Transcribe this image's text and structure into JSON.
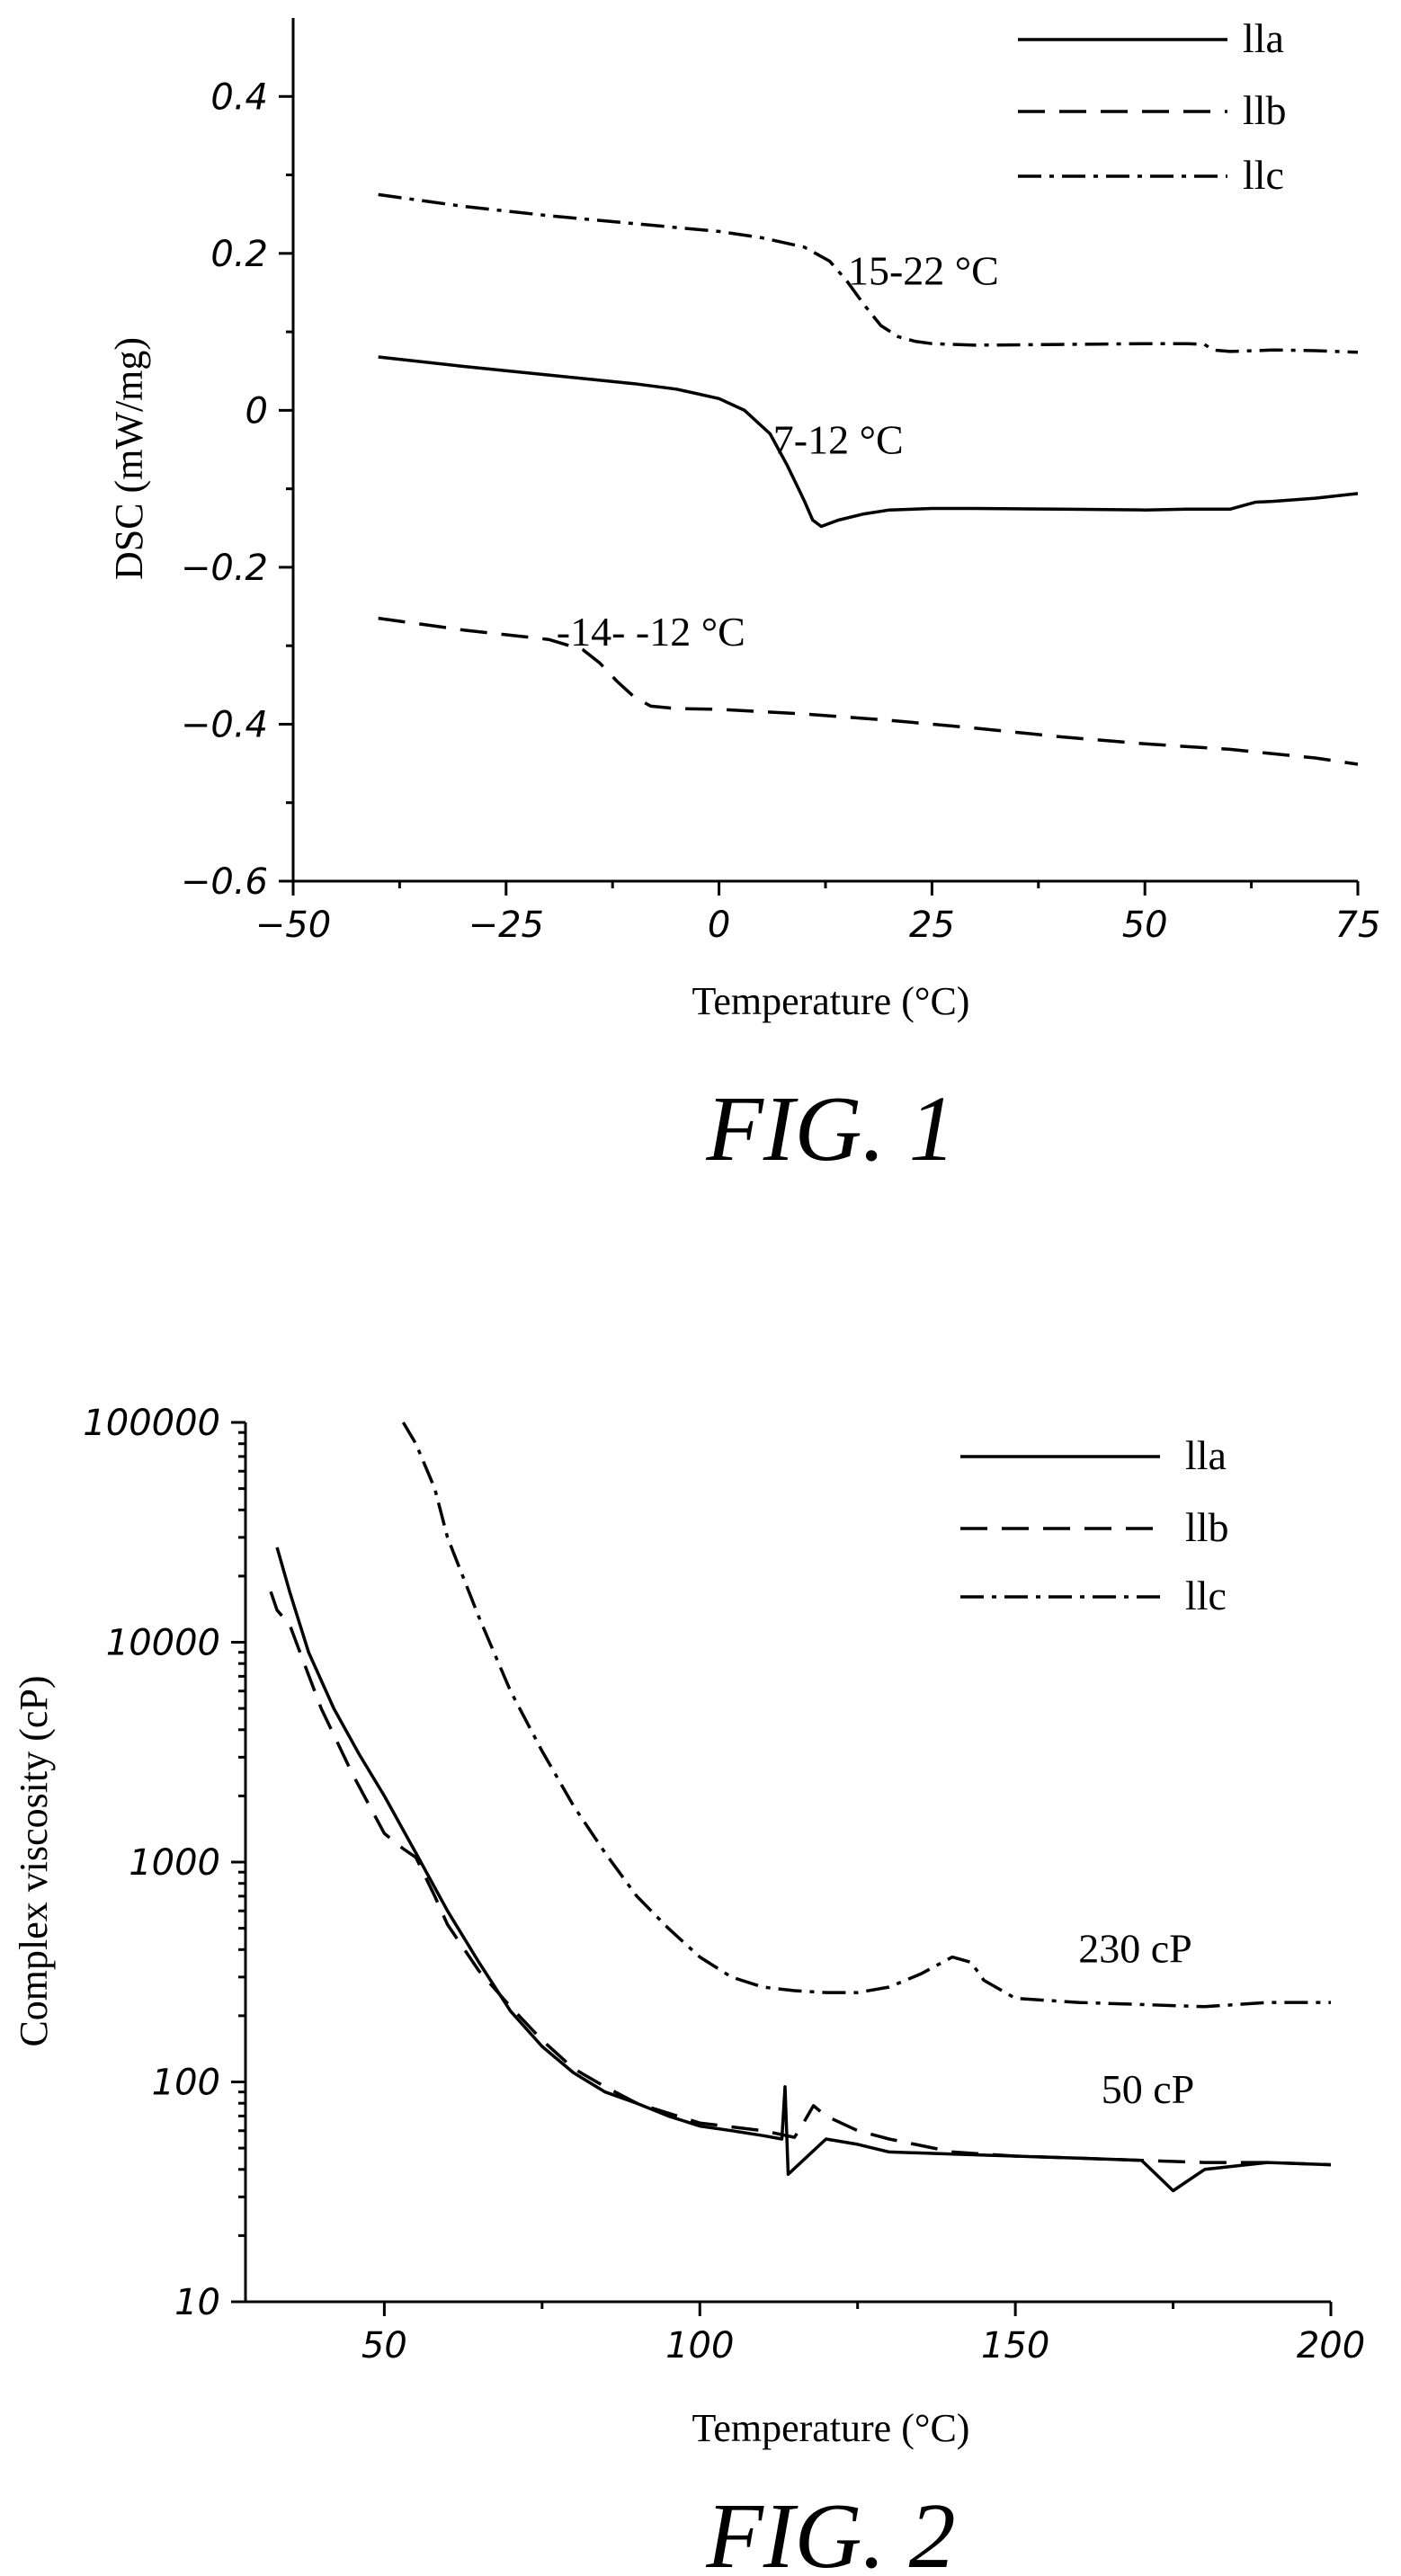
{
  "chart_data": [
    {
      "type": "line",
      "caption": "FIG. 1",
      "xlabel": "Temperature (°C)",
      "ylabel": "DSC (mW/mg)",
      "xlim": [
        -50,
        75
      ],
      "ylim": [
        -0.6,
        0.5
      ],
      "x_ticks": [
        -50,
        -25,
        0,
        25,
        50,
        75
      ],
      "x_tick_labels": [
        "−50",
        "−25",
        "0",
        "25",
        "50",
        "75"
      ],
      "y_ticks": [
        -0.6,
        -0.4,
        -0.2,
        0,
        0.2,
        0.4
      ],
      "y_tick_labels": [
        "−0.6",
        "−0.4",
        "−0.2",
        "0",
        "0.2",
        "0.4"
      ],
      "y_scale": "linear",
      "grid": false,
      "legend_position": "top-right",
      "series": [
        {
          "name": "lla",
          "style": "solid",
          "x": [
            -40,
            -30,
            -20,
            -10,
            -5,
            0,
            3,
            6,
            8,
            10,
            11,
            12,
            14,
            17,
            20,
            25,
            30,
            40,
            50,
            55,
            60,
            62,
            63,
            65,
            70,
            75
          ],
          "y": [
            0.068,
            0.056,
            0.045,
            0.034,
            0.027,
            0.015,
            0.0,
            -0.03,
            -0.07,
            -0.115,
            -0.14,
            -0.148,
            -0.14,
            -0.132,
            -0.127,
            -0.125,
            -0.125,
            -0.126,
            -0.127,
            -0.126,
            -0.126,
            -0.12,
            -0.117,
            -0.116,
            -0.112,
            -0.106
          ]
        },
        {
          "name": "llb",
          "style": "dashed",
          "x": [
            -40,
            -30,
            -20,
            -16,
            -14,
            -12,
            -10,
            -8,
            -5,
            0,
            10,
            20,
            30,
            40,
            50,
            60,
            70,
            75
          ],
          "y": [
            -0.265,
            -0.28,
            -0.292,
            -0.305,
            -0.322,
            -0.345,
            -0.365,
            -0.377,
            -0.38,
            -0.381,
            -0.387,
            -0.395,
            -0.405,
            -0.416,
            -0.425,
            -0.432,
            -0.443,
            -0.451
          ]
        },
        {
          "name": "llc",
          "style": "dash-dot",
          "x": [
            -40,
            -30,
            -20,
            -10,
            0,
            5,
            10,
            13,
            15,
            17,
            19,
            21,
            23,
            25,
            30,
            40,
            50,
            55,
            57,
            58,
            60,
            63,
            65,
            70,
            75
          ],
          "y": [
            0.275,
            0.26,
            0.248,
            0.238,
            0.228,
            0.22,
            0.208,
            0.19,
            0.165,
            0.135,
            0.108,
            0.094,
            0.088,
            0.085,
            0.083,
            0.084,
            0.085,
            0.085,
            0.084,
            0.077,
            0.075,
            0.076,
            0.077,
            0.076,
            0.074
          ]
        }
      ],
      "annotations": [
        {
          "text": "15-22 °C",
          "x": 24,
          "y": 0.16
        },
        {
          "text": "7-12 °C",
          "x": 14,
          "y": -0.055
        },
        {
          "text": "-14- -12 °C",
          "x": -8,
          "y": -0.3
        }
      ]
    },
    {
      "type": "line",
      "caption": "FIG. 2",
      "xlabel": "Temperature (°C)",
      "ylabel": "Complex viscosity (cP)",
      "xlim": [
        28,
        200
      ],
      "ylim": [
        10,
        100000
      ],
      "x_ticks": [
        50,
        100,
        150,
        200
      ],
      "x_tick_labels": [
        "50",
        "100",
        "150",
        "200"
      ],
      "y_ticks": [
        10,
        100,
        1000,
        10000,
        100000
      ],
      "y_tick_labels": [
        "10",
        "100",
        "1000",
        "10000",
        "100000"
      ],
      "y_scale": "log",
      "grid": false,
      "legend_position": "top-right",
      "series": [
        {
          "name": "lla",
          "style": "solid",
          "x": [
            33,
            35,
            38,
            42,
            46,
            50,
            55,
            60,
            65,
            70,
            75,
            80,
            85,
            90,
            95,
            100,
            105,
            110,
            113,
            113.5,
            114,
            120,
            125,
            130,
            140,
            150,
            160,
            170,
            175,
            180,
            190,
            200
          ],
          "y": [
            27000,
            17000,
            9000,
            5000,
            3100,
            2000,
            1100,
            600,
            350,
            210,
            145,
            110,
            90,
            80,
            70,
            63,
            60,
            57,
            55,
            95,
            38,
            55,
            52,
            48,
            47,
            46,
            45,
            44,
            32,
            40,
            43,
            42
          ]
        },
        {
          "name": "llb",
          "style": "dashed",
          "x": [
            32,
            33,
            35,
            40,
            45,
            50,
            53,
            55,
            58,
            60,
            65,
            70,
            75,
            80,
            85,
            90,
            100,
            110,
            115,
            116,
            118,
            120,
            125,
            130,
            140,
            150,
            160,
            170,
            180,
            190,
            200
          ],
          "y": [
            17000,
            14000,
            12000,
            5000,
            2500,
            1350,
            1150,
            1050,
            700,
            520,
            320,
            220,
            155,
            115,
            95,
            80,
            65,
            60,
            56,
            62,
            78,
            70,
            60,
            55,
            48,
            46,
            45,
            44,
            43,
            43,
            42
          ]
        },
        {
          "name": "llc",
          "style": "dash-dot",
          "x": [
            53,
            55,
            58,
            60,
            65,
            70,
            75,
            80,
            85,
            90,
            95,
            100,
            105,
            110,
            115,
            120,
            125,
            130,
            135,
            140,
            143,
            145,
            150,
            160,
            170,
            180,
            190,
            200
          ],
          "y": [
            100000,
            80000,
            50000,
            30000,
            13000,
            6000,
            3200,
            1800,
            1100,
            700,
            500,
            370,
            300,
            270,
            260,
            255,
            255,
            270,
            310,
            370,
            350,
            290,
            240,
            230,
            225,
            220,
            230,
            230
          ]
        }
      ],
      "annotations": [
        {
          "text": "230 cP",
          "x": 169,
          "y": 350
        },
        {
          "text": "50 cP",
          "x": 171,
          "y": 80
        }
      ]
    }
  ]
}
